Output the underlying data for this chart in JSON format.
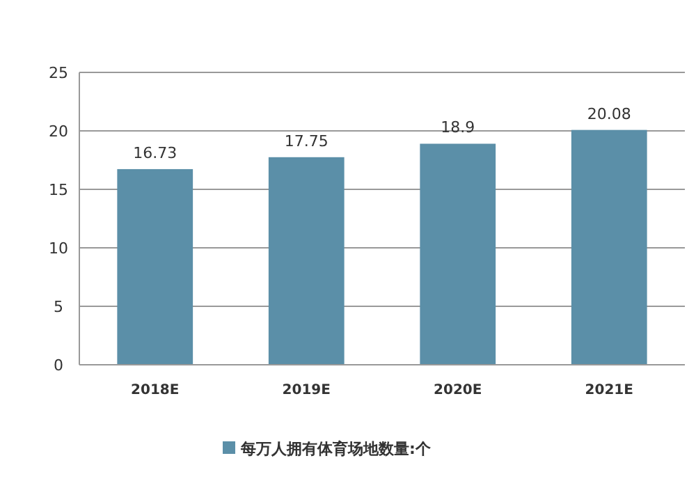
{
  "chart_data": {
    "type": "bar",
    "categories": [
      "2018E",
      "2019E",
      "2020E",
      "2021E"
    ],
    "series": [
      {
        "name": "每万人拥有体育场地数量:个",
        "color": "#5b8fa8",
        "values": [
          16.73,
          17.75,
          18.9,
          20.08
        ]
      }
    ],
    "ylim": [
      0,
      25
    ],
    "yticks": [
      0,
      5,
      10,
      15,
      20,
      25
    ],
    "grid": "y",
    "legend": "bottom",
    "data_labels": true
  }
}
